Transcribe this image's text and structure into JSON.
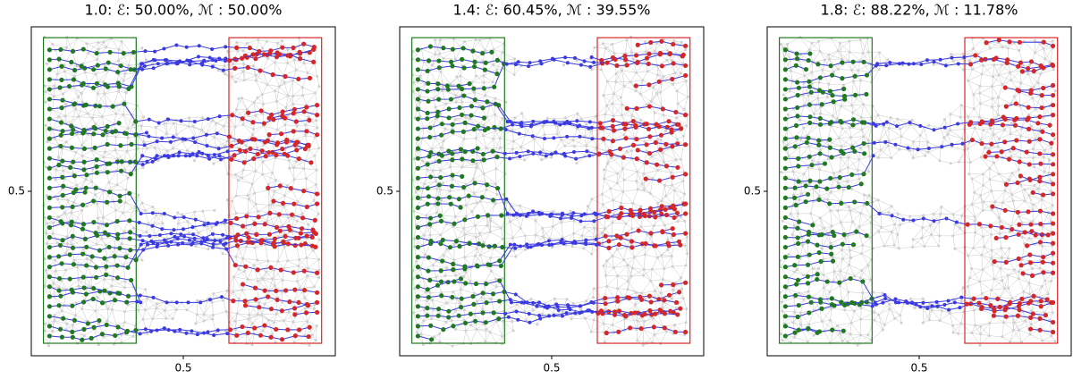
{
  "chart_data": [
    {
      "type": "network",
      "title": "1.0: ℰ:  50.00%, ℳ :  50.00%",
      "xlim": [
        0,
        1
      ],
      "ylim": [
        0,
        1
      ],
      "xticks": [
        0.5
      ],
      "yticks": [
        0.5
      ],
      "source_color": "#1f7a1f",
      "sink_color": "#d62728",
      "path_color": "#3a3ae0"
    },
    {
      "type": "network",
      "title": "1.4: ℰ:  60.45%, ℳ :  39.55%",
      "xlim": [
        0,
        1
      ],
      "ylim": [
        0,
        1
      ],
      "xticks": [
        0.5
      ],
      "yticks": [
        0.5
      ],
      "source_color": "#1f7a1f",
      "sink_color": "#d62728",
      "path_color": "#3a3ae0"
    },
    {
      "type": "network",
      "title": "1.8: ℰ:  88.22%, ℳ :  11.78%",
      "xlim": [
        0,
        1
      ],
      "ylim": [
        0,
        1
      ],
      "xticks": [
        0.5
      ],
      "yticks": [
        0.5
      ],
      "source_color": "#1f7a1f",
      "sink_color": "#d62728",
      "path_color": "#3a3ae0"
    }
  ]
}
